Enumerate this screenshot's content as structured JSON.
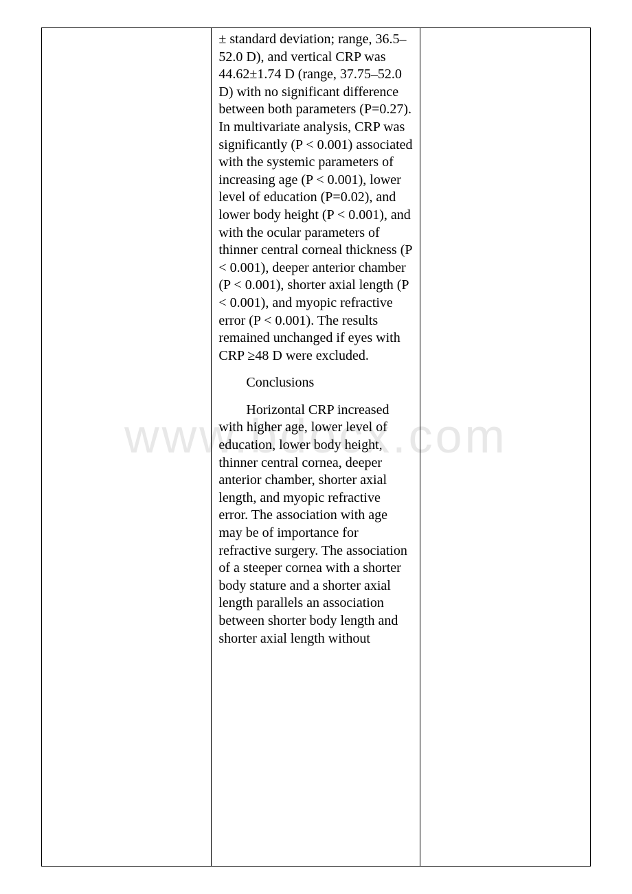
{
  "watermark": "www.bdocx.com",
  "column2": {
    "results_continued": "± standard deviation; range, 36.5–52.0 D), and vertical CRP was 44.62±1.74 D (range, 37.75–52.0 D) with no significant difference between both parameters (P=0.27). In multivariate analysis, CRP was significantly (P < 0.001) associated with the systemic parameters of increasing age (P < 0.001), lower level of education (P=0.02), and lower body height (P < 0.001), and with the ocular parameters of thinner central corneal thickness (P < 0.001), deeper anterior chamber (P < 0.001), shorter axial length (P < 0.001), and myopic refractive error (P < 0.001). The results remained unchanged if eyes with CRP ≥48 D were excluded.",
    "conclusions_heading": "Conclusions",
    "conclusions_body": "Horizontal CRP increased with higher age, lower level of education, lower body height, thinner central cornea, deeper anterior chamber, shorter axial length, and myopic refractive error. The association with age may be of importance for refractive surgery. The association of a steeper cornea with a shorter body stature and a shorter axial length parallels an association between shorter body length and shorter axial length without"
  }
}
